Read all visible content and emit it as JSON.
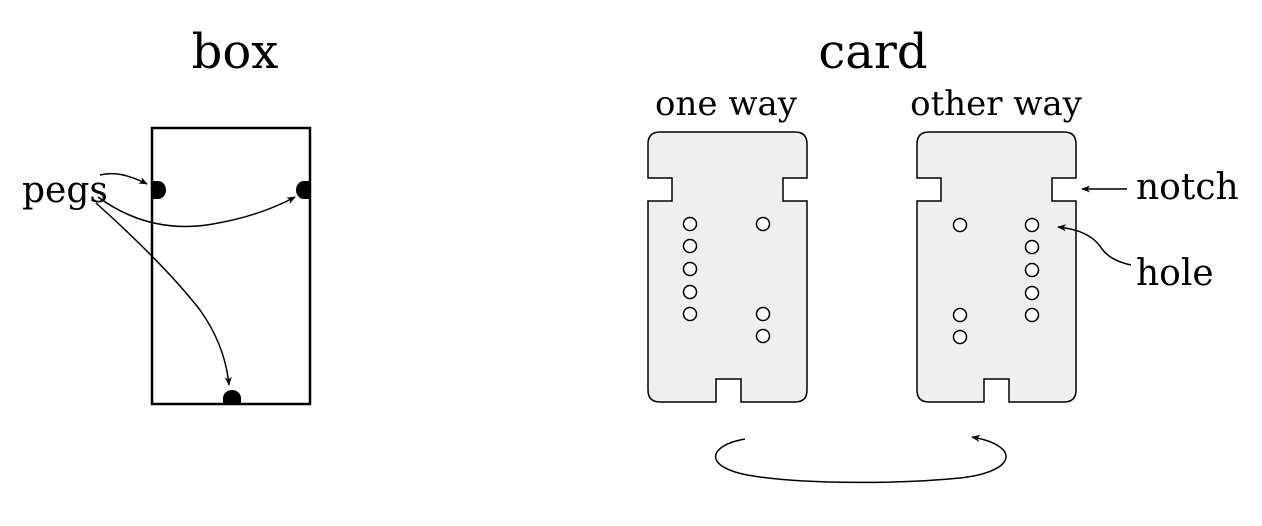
{
  "box": {
    "title": "box",
    "pegs_label": "pegs"
  },
  "card": {
    "title": "card",
    "one_way_label": "one way",
    "other_way_label": "other way",
    "notch_label": "notch",
    "hole_label": "hole"
  }
}
